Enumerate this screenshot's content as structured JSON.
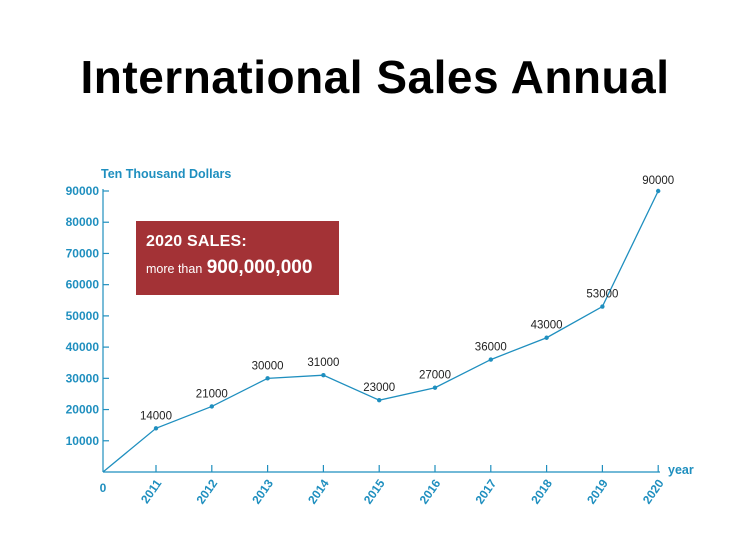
{
  "title": "International Sales Annual",
  "callout": {
    "heading": "2020 SALES:",
    "prefix": "more than",
    "amount": "900,000,000"
  },
  "colors": {
    "axis": "#1f8fbf",
    "line": "#1f8fbf",
    "callout_bg": "#a33236"
  },
  "chart_data": {
    "type": "line",
    "title": "International Sales Annual",
    "ylabel": "Ten Thousand Dollars",
    "xlabel": "year",
    "ylim": [
      0,
      90000
    ],
    "yticks": [
      10000,
      20000,
      30000,
      40000,
      50000,
      60000,
      70000,
      80000,
      90000
    ],
    "origin_label": "0",
    "x": [
      "2011",
      "2012",
      "2013",
      "2014",
      "2015",
      "2016",
      "2017",
      "2018",
      "2019",
      "2020"
    ],
    "series": [
      {
        "values": [
          14000,
          21000,
          30000,
          31000,
          23000,
          27000,
          36000,
          43000,
          53000,
          90000
        ]
      }
    ],
    "data_labels": [
      "14000",
      "21000",
      "30000",
      "31000",
      "23000",
      "27000",
      "36000",
      "43000",
      "53000",
      "90000"
    ],
    "start_value": 0,
    "grid": false
  }
}
